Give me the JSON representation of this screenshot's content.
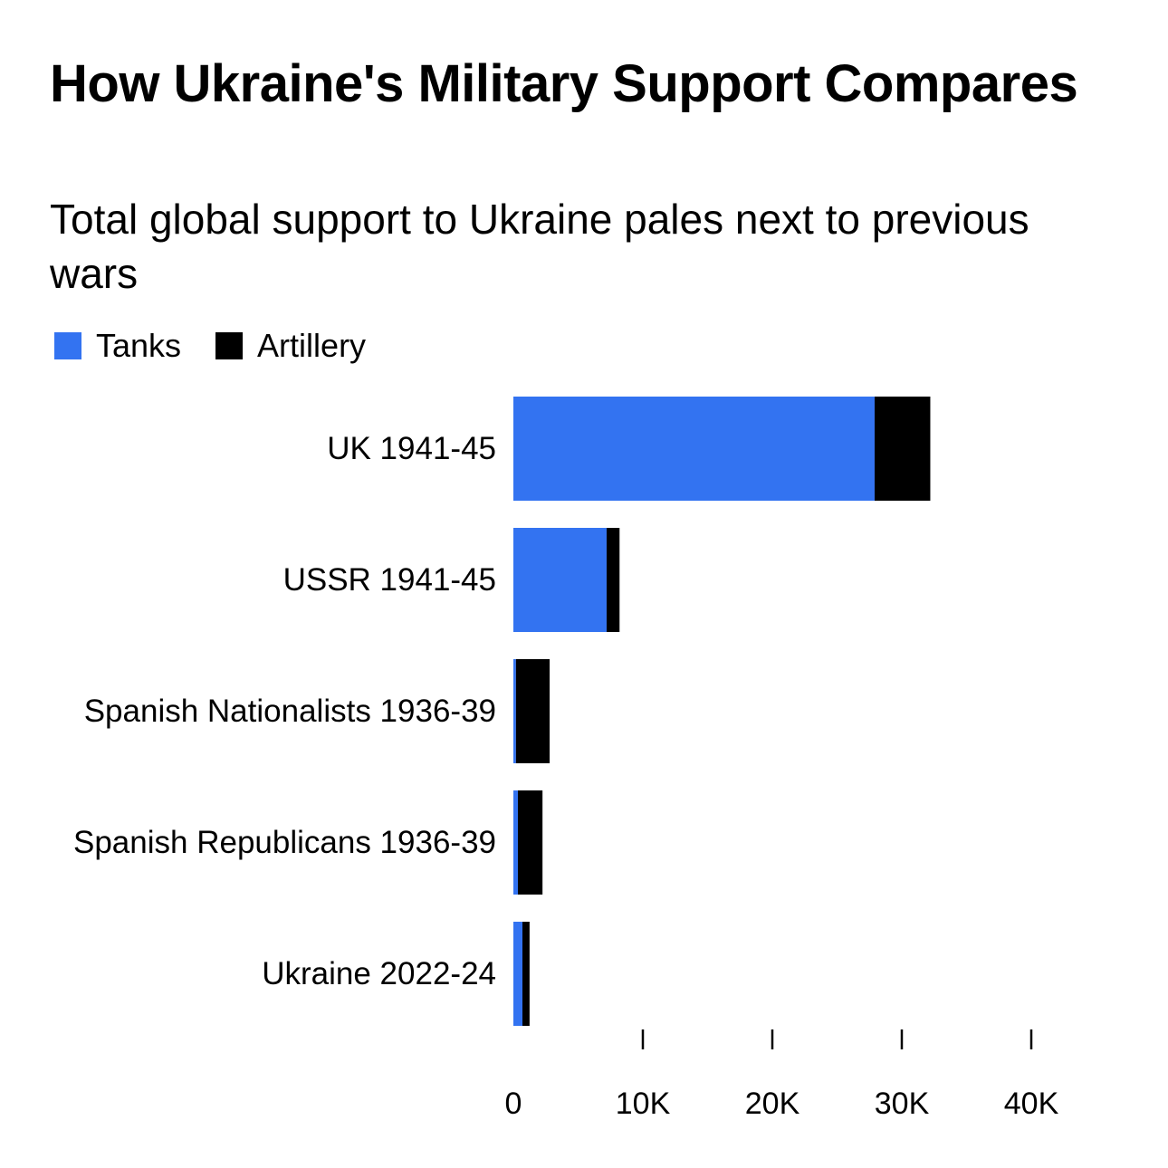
{
  "colors": {
    "tanks": "#3373F1",
    "artillery": "#000000",
    "axis": "#000000",
    "background": "#FFFFFF"
  },
  "chart_data": {
    "type": "bar",
    "orientation": "horizontal",
    "stacked": true,
    "title": "How Ukraine's Military Support Compares",
    "subtitle": "Total global support to Ukraine pales next to previous wars",
    "categories": [
      "UK 1941-45",
      "USSR 1941-45",
      "Spanish Nationalists 1936-39",
      "Spanish Republicans 1936-39",
      "Ukraine 2022-24"
    ],
    "series": [
      {
        "name": "Tanks",
        "values": [
          27900,
          7200,
          200,
          350,
          700
        ]
      },
      {
        "name": "Artillery",
        "values": [
          4300,
          1000,
          2600,
          1900,
          550
        ]
      }
    ],
    "xlim": [
      0,
      40000
    ],
    "x_ticks": [
      0,
      10000,
      20000,
      30000,
      40000
    ],
    "x_tick_labels": [
      "0",
      "10K",
      "20K",
      "30K",
      "40K"
    ],
    "legend": "top-left",
    "grid": false
  }
}
